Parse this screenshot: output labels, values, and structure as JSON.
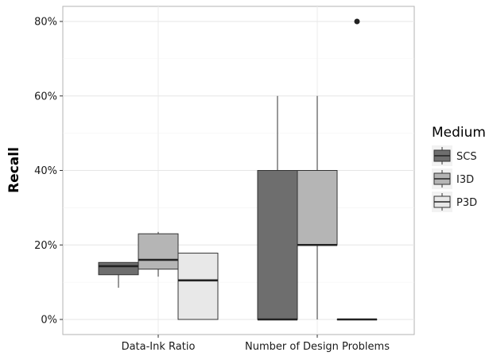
{
  "chart_data": {
    "type": "boxplot",
    "ylabel": "Recall",
    "xlabel": "",
    "categories": [
      "Data-Ink Ratio",
      "Number of Design Problems"
    ],
    "ylim": [
      -2,
      85
    ],
    "yticks": [
      0,
      20,
      40,
      60,
      80
    ],
    "ytick_labels": [
      "0%",
      "20%",
      "40%",
      "60%",
      "80%"
    ],
    "grid": true,
    "legend": {
      "title": "Medium",
      "position": "right",
      "entries": [
        "SCS",
        "I3D",
        "P3D"
      ]
    },
    "series": [
      {
        "name": "SCS",
        "color": "#6e6e6e",
        "boxes": [
          {
            "min": 8.5,
            "q1": 12,
            "median": 14.3,
            "q3": 15.3,
            "max": 15.3,
            "outliers": []
          },
          {
            "min": 0,
            "q1": 0,
            "median": 0,
            "q3": 40,
            "max": 60,
            "outliers": []
          }
        ]
      },
      {
        "name": "I3D",
        "color": "#b5b5b5",
        "boxes": [
          {
            "min": 11.5,
            "q1": 13.5,
            "median": 16,
            "q3": 23,
            "max": 23.5,
            "outliers": []
          },
          {
            "min": 0,
            "q1": 20,
            "median": 20,
            "q3": 40,
            "max": 60,
            "outliers": []
          }
        ]
      },
      {
        "name": "P3D",
        "color": "#e8e8e8",
        "boxes": [
          {
            "min": 0,
            "q1": 0,
            "median": 10.5,
            "q3": 17.8,
            "max": 17.8,
            "outliers": []
          },
          {
            "min": 0,
            "q1": 0,
            "median": 0,
            "q3": 0,
            "max": 0,
            "outliers": [
              80
            ]
          }
        ]
      }
    ]
  }
}
